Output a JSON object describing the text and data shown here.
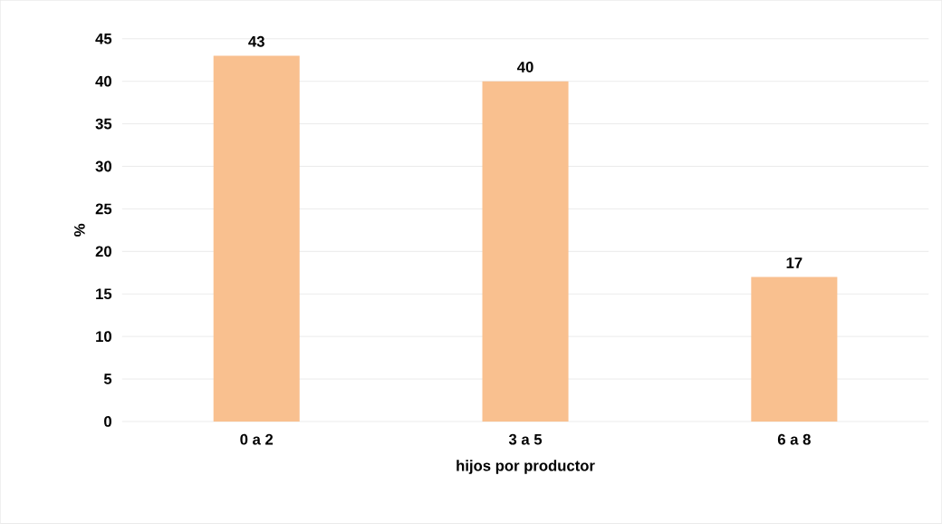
{
  "chart_data": {
    "type": "bar",
    "xlabel": "hijos por productor",
    "ylabel": "%",
    "categories": [
      "0 a 2",
      "3 a 5",
      "6 a 8"
    ],
    "values": [
      43,
      40,
      17
    ],
    "color": "#f9c08f",
    "data_labels": true,
    "ylim": [
      0,
      45
    ],
    "yticks": [
      0,
      5,
      10,
      15,
      20,
      25,
      30,
      35,
      40,
      45
    ],
    "grid": "y"
  }
}
